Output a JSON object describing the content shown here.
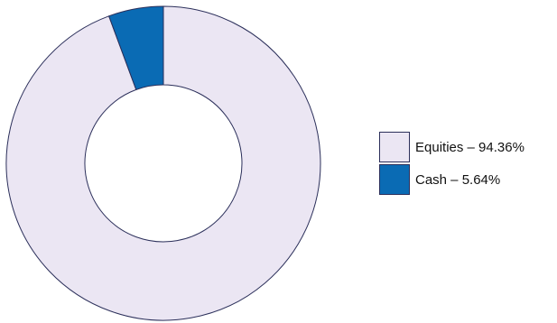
{
  "chart_data": {
    "type": "pie",
    "variant": "donut",
    "title": "",
    "legend_position": "right",
    "slices": [
      {
        "label": "Equities – 94.36%",
        "name": "Equities",
        "value": 94.36,
        "color": "#ebe6f3"
      },
      {
        "label": "Cash – 5.64%",
        "name": "Cash",
        "value": 5.64,
        "color": "#0a6bb4"
      }
    ],
    "outline_color": "#2b2f5a"
  }
}
